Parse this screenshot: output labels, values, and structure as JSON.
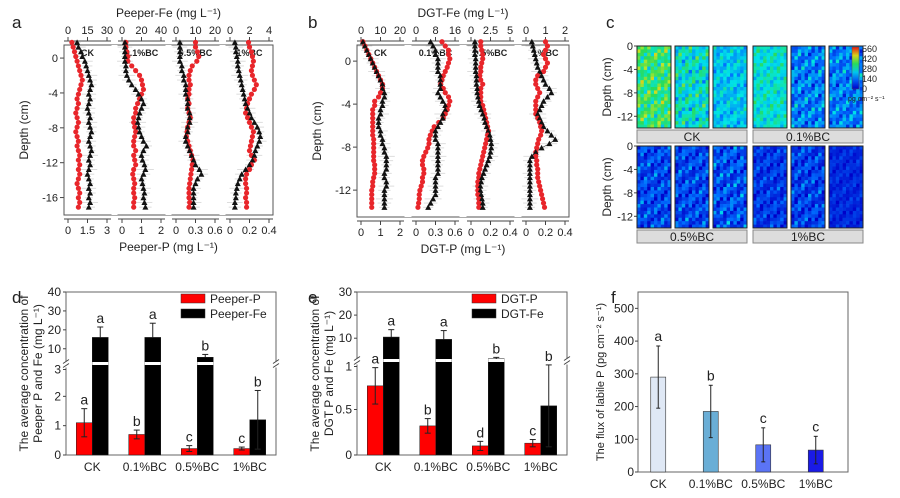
{
  "figure": {
    "panel_letters": [
      "a",
      "b",
      "c",
      "d",
      "e",
      "f"
    ]
  },
  "chart_data": [
    {
      "panel": "a",
      "type": "scatter",
      "title": "",
      "top_axis_label": "Peeper-Fe (mg L⁻¹)",
      "bottom_axis_label": "Peeper-P (mg L⁻¹)",
      "ylabel": "Depth (cm)",
      "yticks": [
        0,
        -4,
        -8,
        -12,
        -16
      ],
      "ylim": [
        1.5,
        -18
      ],
      "subpanels": [
        {
          "label": "CK",
          "fe_ticks": [
            "0",
            "15",
            "30"
          ],
          "fe_lim": [
            0,
            30
          ],
          "p_ticks": [
            "0",
            "1.5",
            "3"
          ],
          "p_lim": [
            0,
            3
          ],
          "fe": [
            7,
            8,
            10,
            11,
            13,
            14,
            15,
            16,
            17,
            18,
            17,
            16,
            17,
            16,
            15,
            16,
            17,
            16,
            17,
            18,
            17,
            16,
            17,
            18,
            17,
            16,
            17,
            16,
            15,
            16,
            17,
            16,
            17,
            16,
            17,
            16
          ],
          "p": [
            0.3,
            0.4,
            0.5,
            0.6,
            0.7,
            0.8,
            0.9,
            1.0,
            1.1,
            1.0,
            0.9,
            0.8,
            0.7,
            0.8,
            0.7,
            0.6,
            0.7,
            0.8,
            0.7,
            0.6,
            0.7,
            0.8,
            0.7,
            0.8,
            0.9,
            0.8,
            0.9,
            0.8,
            0.9,
            0.8,
            0.7,
            0.8,
            0.9,
            0.8,
            0.9,
            0.8
          ]
        },
        {
          "label": "0.1%BC",
          "fe_ticks": [
            "0",
            "20",
            "40"
          ],
          "fe_lim": [
            0,
            40
          ],
          "p_ticks": [
            "0",
            "1",
            "2"
          ],
          "p_lim": [
            0,
            2
          ],
          "fe": [
            3,
            3,
            3,
            3,
            3,
            4,
            4,
            5,
            7,
            10,
            14,
            17,
            20,
            22,
            20,
            18,
            17,
            16,
            17,
            18,
            20,
            22,
            25,
            22,
            20,
            21,
            23,
            24,
            22,
            20,
            21,
            22,
            23,
            22,
            23,
            24
          ],
          "p": [
            0.2,
            0.2,
            0.25,
            0.3,
            0.3,
            0.5,
            0.7,
            0.9,
            1.0,
            1.05,
            1.1,
            1.0,
            0.9,
            0.8,
            0.7,
            0.7,
            0.6,
            0.6,
            0.65,
            0.7,
            0.65,
            0.6,
            0.6,
            0.7,
            0.6,
            0.65,
            0.7,
            0.6,
            0.55,
            0.6,
            0.65,
            0.6,
            0.6,
            0.65,
            0.6,
            0.6
          ]
        },
        {
          "label": "0.5%BC",
          "fe_ticks": [
            "0",
            "10",
            "20"
          ],
          "fe_lim": [
            0,
            20
          ],
          "p_ticks": [
            "0",
            "0.3",
            "0.6"
          ],
          "p_lim": [
            0,
            0.6
          ],
          "fe": [
            2,
            2,
            2,
            2,
            2,
            3,
            3,
            4,
            4,
            5,
            5,
            5,
            6,
            6,
            6,
            7,
            7,
            7,
            6,
            6,
            5,
            5,
            6,
            7,
            8,
            9,
            10,
            12,
            13,
            11,
            10,
            9,
            9,
            9,
            9,
            9
          ],
          "p": [
            0.3,
            0.3,
            0.33,
            0.35,
            0.32,
            0.25,
            0.22,
            0.2,
            0.2,
            0.22,
            0.2,
            0.2,
            0.18,
            0.2,
            0.18,
            0.2,
            0.22,
            0.2,
            0.18,
            0.17,
            0.16,
            0.18,
            0.2,
            0.22,
            0.24,
            0.26,
            0.25,
            0.24,
            0.23,
            0.22,
            0.21,
            0.2,
            0.2,
            0.2,
            0.21,
            0.2
          ]
        },
        {
          "label": "1%BC",
          "fe_ticks": [
            "0",
            "2",
            "4"
          ],
          "fe_lim": [
            0,
            4
          ],
          "p_ticks": [
            "0",
            "0.2",
            "0.4"
          ],
          "p_lim": [
            0,
            0.4
          ],
          "fe": [
            0.5,
            0.6,
            0.6,
            0.7,
            0.8,
            0.8,
            0.9,
            1.0,
            1.1,
            1.2,
            1.3,
            1.4,
            1.5,
            1.6,
            1.8,
            2.0,
            2.2,
            2.5,
            2.8,
            3.0,
            3.1,
            3.0,
            2.8,
            2.6,
            2.5,
            2.3,
            2.0,
            1.6,
            1.2,
            1.0,
            0.8,
            0.7,
            0.6,
            0.6,
            0.5,
            0.5
          ],
          "p": [
            0.19,
            0.2,
            0.22,
            0.23,
            0.24,
            0.23,
            0.22,
            0.23,
            0.25,
            0.27,
            0.25,
            0.22,
            0.2,
            0.18,
            0.17,
            0.16,
            0.18,
            0.2,
            0.22,
            0.24,
            0.23,
            0.22,
            0.21,
            0.2,
            0.22,
            0.25,
            0.22,
            0.2,
            0.17,
            0.16,
            0.16,
            0.17,
            0.17,
            0.16,
            0.17,
            0.17
          ]
        }
      ],
      "series": [
        {
          "name": "Peeper-P",
          "marker": "circle",
          "color": "#e8262b"
        },
        {
          "name": "Peeper-Fe",
          "marker": "triangle",
          "color": "#111111"
        }
      ]
    },
    {
      "panel": "b",
      "type": "scatter",
      "top_axis_label": "DGT-Fe (mg L⁻¹)",
      "bottom_axis_label": "DGT-P (mg L⁻¹)",
      "ylabel": "Depth (cm)",
      "yticks": [
        0,
        -4,
        -8,
        -12
      ],
      "ylim": [
        1.5,
        -14.5
      ],
      "subpanels": [
        {
          "label": "CK",
          "fe_ticks": [
            "0",
            "10",
            "20"
          ],
          "fe_lim": [
            0,
            20
          ],
          "p_ticks": [
            "0",
            "1",
            "2"
          ],
          "p_lim": [
            0,
            2
          ],
          "fe": [
            1,
            2,
            3,
            4,
            5,
            6,
            7,
            8,
            9,
            10,
            11,
            11,
            12,
            12,
            11,
            11,
            10,
            10,
            9,
            9,
            9,
            10,
            10,
            11,
            11,
            12,
            12,
            13,
            13,
            13,
            13,
            12,
            12,
            13,
            13,
            12,
            12,
            12,
            12,
            12
          ],
          "p": [
            0.1,
            0.2,
            0.3,
            0.4,
            0.5,
            0.6,
            0.7,
            0.8,
            0.9,
            1.0,
            1.1,
            1.1,
            1.0,
            0.9,
            0.7,
            0.7,
            0.6,
            0.6,
            0.6,
            0.6,
            0.6,
            0.6,
            0.6,
            0.65,
            0.65,
            0.65,
            0.65,
            0.65,
            0.65,
            0.7,
            0.7,
            0.7,
            0.65,
            0.6,
            0.6,
            0.55,
            0.55,
            0.55,
            0.55,
            0.55
          ]
        },
        {
          "label": "0.1%BC",
          "fe_ticks": [
            "0",
            "8",
            "16"
          ],
          "fe_lim": [
            0,
            16
          ],
          "p_ticks": [
            "0",
            "0.3",
            "0.6"
          ],
          "p_lim": [
            0,
            0.6
          ],
          "fe": [
            6,
            7,
            8,
            8,
            9,
            9,
            9,
            9,
            10,
            10,
            10,
            10,
            9,
            10,
            11,
            12,
            12,
            11,
            11,
            10,
            9,
            8,
            8,
            8,
            9,
            9,
            9,
            9,
            9,
            9,
            9,
            9,
            8,
            8,
            8,
            8,
            8,
            7,
            6,
            5
          ],
          "p": [
            0.4,
            0.45,
            0.5,
            0.5,
            0.52,
            0.5,
            0.48,
            0.45,
            0.42,
            0.4,
            0.38,
            0.42,
            0.45,
            0.5,
            0.52,
            0.5,
            0.48,
            0.45,
            0.42,
            0.35,
            0.28,
            0.25,
            0.22,
            0.2,
            0.2,
            0.18,
            0.15,
            0.12,
            0.1,
            0.1,
            0.12,
            0.12,
            0.1,
            0.1,
            0.08,
            0.06,
            0.05,
            0.05,
            0.04,
            0.03
          ]
        },
        {
          "label": "0.5%BC",
          "fe_ticks": [
            "0",
            "2.5",
            "5"
          ],
          "fe_lim": [
            0,
            5
          ],
          "p_ticks": [
            "0",
            "0.2",
            "0.4"
          ],
          "p_lim": [
            0,
            0.4
          ],
          "fe": [
            0.5,
            0.5,
            0.5,
            0.5,
            0.6,
            0.6,
            0.6,
            0.6,
            0.7,
            0.7,
            0.7,
            0.8,
            0.8,
            0.9,
            1.0,
            1.1,
            1.3,
            1.5,
            1.7,
            1.8,
            2.0,
            2.2,
            2.4,
            2.5,
            2.6,
            2.6,
            2.5,
            2.4,
            2.2,
            2.0,
            1.8,
            1.6,
            1.4,
            1.3,
            1.2,
            1.2,
            1.3,
            1.4,
            1.5,
            1.5
          ],
          "p": [
            0.1,
            0.1,
            0.11,
            0.12,
            0.12,
            0.11,
            0.1,
            0.1,
            0.09,
            0.1,
            0.12,
            0.1,
            0.1,
            0.1,
            0.1,
            0.12,
            0.13,
            0.14,
            0.15,
            0.16,
            0.17,
            0.18,
            0.17,
            0.16,
            0.15,
            0.14,
            0.13,
            0.12,
            0.11,
            0.1,
            0.09,
            0.08,
            0.08,
            0.07,
            0.07,
            0.07,
            0.07,
            0.08,
            0.08,
            0.08
          ]
        },
        {
          "label": "1%BC",
          "fe_ticks": [
            "0",
            "1",
            "2"
          ],
          "fe_lim": [
            0,
            2
          ],
          "p_ticks": [
            "0",
            "0.2",
            "0.4"
          ],
          "p_lim": [
            0,
            0.4
          ],
          "fe": [
            0.3,
            0.35,
            0.4,
            0.45,
            0.5,
            0.55,
            0.6,
            0.7,
            0.8,
            0.9,
            1.0,
            1.2,
            1.3,
            1.1,
            0.9,
            0.8,
            0.7,
            0.6,
            0.7,
            0.8,
            0.9,
            1.1,
            1.3,
            1.5,
            1.2,
            0.8,
            0.5,
            0.3,
            0.2,
            0.2,
            0.2,
            0.2,
            0.2,
            0.2,
            0.2,
            0.2,
            0.2,
            0.2,
            0.2,
            0.2
          ],
          "p": [
            0.2,
            0.22,
            0.2,
            0.18,
            0.2,
            0.22,
            0.2,
            0.18,
            0.12,
            0.1,
            0.1,
            0.12,
            0.14,
            0.12,
            0.1,
            0.1,
            0.1,
            0.1,
            0.12,
            0.14,
            0.15,
            0.16,
            0.15,
            0.13,
            0.12,
            0.11,
            0.1,
            0.1,
            0.11,
            0.11,
            0.12,
            0.12,
            0.12,
            0.13,
            0.14,
            0.15,
            0.16,
            0.17,
            0.18,
            0.19
          ]
        }
      ],
      "series": [
        {
          "name": "DGT-P",
          "marker": "circle",
          "color": "#e8262b"
        },
        {
          "name": "DGT-Fe",
          "marker": "triangle",
          "color": "#111111"
        }
      ]
    },
    {
      "panel": "c",
      "type": "heatmap",
      "ylabel": "Depth (cm)",
      "yticks": [
        "0",
        "-4",
        "-8",
        "-12"
      ],
      "colorbar": {
        "ticks": [
          "560",
          "420",
          "280",
          "140",
          "0"
        ],
        "unit": "pg cm⁻² s⁻¹",
        "range": [
          0,
          560
        ]
      },
      "groups_top": [
        "CK",
        "0.1%BC"
      ],
      "groups_bottom": [
        "0.5%BC",
        "1%BC"
      ],
      "strips": [
        {
          "group": "CK",
          "mean": 330,
          "variation": 90
        },
        {
          "group": "CK",
          "mean": 260,
          "variation": 90
        },
        {
          "group": "CK",
          "mean": 220,
          "variation": 60
        },
        {
          "group": "0.1%BC",
          "mean": 260,
          "variation": 60
        },
        {
          "group": "0.1%BC",
          "mean": 150,
          "variation": 100
        },
        {
          "group": "0.1%BC",
          "mean": 150,
          "variation": 90
        },
        {
          "group": "0.5%BC",
          "mean": 90,
          "variation": 90
        },
        {
          "group": "0.5%BC",
          "mean": 90,
          "variation": 90
        },
        {
          "group": "0.5%BC",
          "mean": 100,
          "variation": 100
        },
        {
          "group": "1%BC",
          "mean": 70,
          "variation": 70
        },
        {
          "group": "1%BC",
          "mean": 80,
          "variation": 90
        },
        {
          "group": "1%BC",
          "mean": 50,
          "variation": 40
        }
      ]
    },
    {
      "panel": "d",
      "type": "bar",
      "ylabel": "The average concentration of Peeper P and Fe (mg L⁻¹)",
      "categories": [
        "CK",
        "0.1%BC",
        "0.5%BC",
        "1%BC"
      ],
      "axis_break": {
        "lower": [
          0,
          3
        ],
        "upper": [
          3,
          40
        ]
      },
      "yticks_lower": [
        "0",
        "1",
        "2",
        "3"
      ],
      "yticks_upper": [
        "10",
        "20",
        "30",
        "40"
      ],
      "legend": "top-right",
      "series": [
        {
          "name": "Peeper-P",
          "color": "#ff0000",
          "values": [
            1.1,
            0.7,
            0.22,
            0.22
          ],
          "errors": [
            0.48,
            0.15,
            0.1,
            0.05
          ],
          "letters": [
            "a",
            "b",
            "c",
            "c"
          ]
        },
        {
          "name": "Peeper-Fe",
          "color": "#000000",
          "values": [
            16,
            16,
            5.5,
            1.2
          ],
          "errors": [
            5.5,
            7.5,
            1.5,
            1.0
          ],
          "letters": [
            "a",
            "a",
            "b",
            "b"
          ]
        }
      ]
    },
    {
      "panel": "e",
      "type": "bar",
      "ylabel": "The average concentration of DGT P and Fe (mg L⁻¹)",
      "categories": [
        "CK",
        "0.1%BC",
        "0.5%BC",
        "1%BC"
      ],
      "axis_break": {
        "lower": [
          0,
          1
        ],
        "upper": [
          1,
          30
        ]
      },
      "yticks_lower": [
        "0",
        "0.5",
        "1"
      ],
      "yticks_upper": [
        "10",
        "20",
        "30"
      ],
      "legend": "top-right",
      "series": [
        {
          "name": "DGT-P",
          "color": "#ff0000",
          "values": [
            0.76,
            0.32,
            0.1,
            0.13
          ],
          "errors": [
            0.2,
            0.08,
            0.05,
            0.04
          ],
          "letters": [
            "a",
            "b",
            "d",
            "c"
          ]
        },
        {
          "name": "DGT-Fe",
          "color": "#000000",
          "values": [
            10.5,
            9.5,
            1.1,
            0.54
          ],
          "errors": [
            3.2,
            3.8,
            0.6,
            0.45
          ],
          "letters": [
            "a",
            "a",
            "b",
            "b"
          ]
        }
      ]
    },
    {
      "panel": "f",
      "type": "bar",
      "ylabel": "The flux of labile P (pg cm⁻² s⁻¹)",
      "categories": [
        "CK",
        "0.1%BC",
        "0.5%BC",
        "1%BC"
      ],
      "ylim": [
        0,
        550
      ],
      "yticks": [
        "0",
        "100",
        "200",
        "300",
        "400",
        "500"
      ],
      "values": [
        290,
        185,
        83,
        67
      ],
      "errors": [
        95,
        80,
        52,
        42
      ],
      "letters": [
        "a",
        "b",
        "c",
        "c"
      ],
      "colors": [
        "#dfe8f5",
        "#6aaed6",
        "#5b74f5",
        "#1a1ae6"
      ]
    }
  ]
}
